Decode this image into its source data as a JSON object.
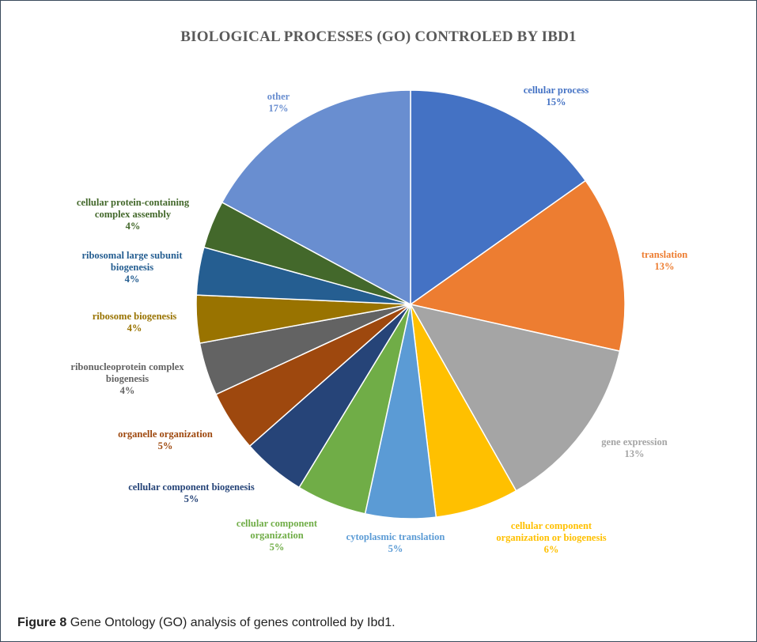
{
  "chart_data": {
    "type": "pie",
    "title": "BIOLOGICAL PROCESSES (GO) CONTROLED BY IBD1",
    "slices": [
      {
        "label": "cellular process",
        "percent_label": "15%",
        "value": 15.2,
        "color": "#4472C4"
      },
      {
        "label": "translation",
        "percent_label": "13%",
        "value": 13.3,
        "color": "#ED7D31"
      },
      {
        "label": "gene expression",
        "percent_label": "13%",
        "value": 13.3,
        "color": "#A5A5A5"
      },
      {
        "label": "cellular component organization or biogenesis",
        "percent_label": "6%",
        "value": 6.3,
        "color": "#FFC000"
      },
      {
        "label": "cytoplasmic translation",
        "percent_label": "5%",
        "value": 5.3,
        "color": "#5B9BD5"
      },
      {
        "label": "cellular component organization",
        "percent_label": "5%",
        "value": 5.3,
        "color": "#70AD47"
      },
      {
        "label": "cellular component biogenesis",
        "percent_label": "5%",
        "value": 4.8,
        "color": "#264478"
      },
      {
        "label": "organelle organization",
        "percent_label": "5%",
        "value": 4.6,
        "color": "#9E480E"
      },
      {
        "label": "ribonucleoprotein complex biogenesis",
        "percent_label": "4%",
        "value": 4.0,
        "color": "#636363"
      },
      {
        "label": "ribosome biogenesis",
        "percent_label": "4%",
        "value": 3.6,
        "color": "#997300"
      },
      {
        "label": "ribosomal large subunit biogenesis",
        "percent_label": "4%",
        "value": 3.6,
        "color": "#255E91"
      },
      {
        "label": "cellular protein-containing complex assembly",
        "percent_label": "4%",
        "value": 3.6,
        "color": "#43682B"
      },
      {
        "label": "other",
        "percent_label": "17%",
        "value": 17.1,
        "color": "#698ED0"
      }
    ],
    "legend": "none (category labels placed around pie)"
  },
  "caption": {
    "label": "Figure 8",
    "text": "Gene Ontology (GO) analysis of genes controlled by Ibd1."
  }
}
